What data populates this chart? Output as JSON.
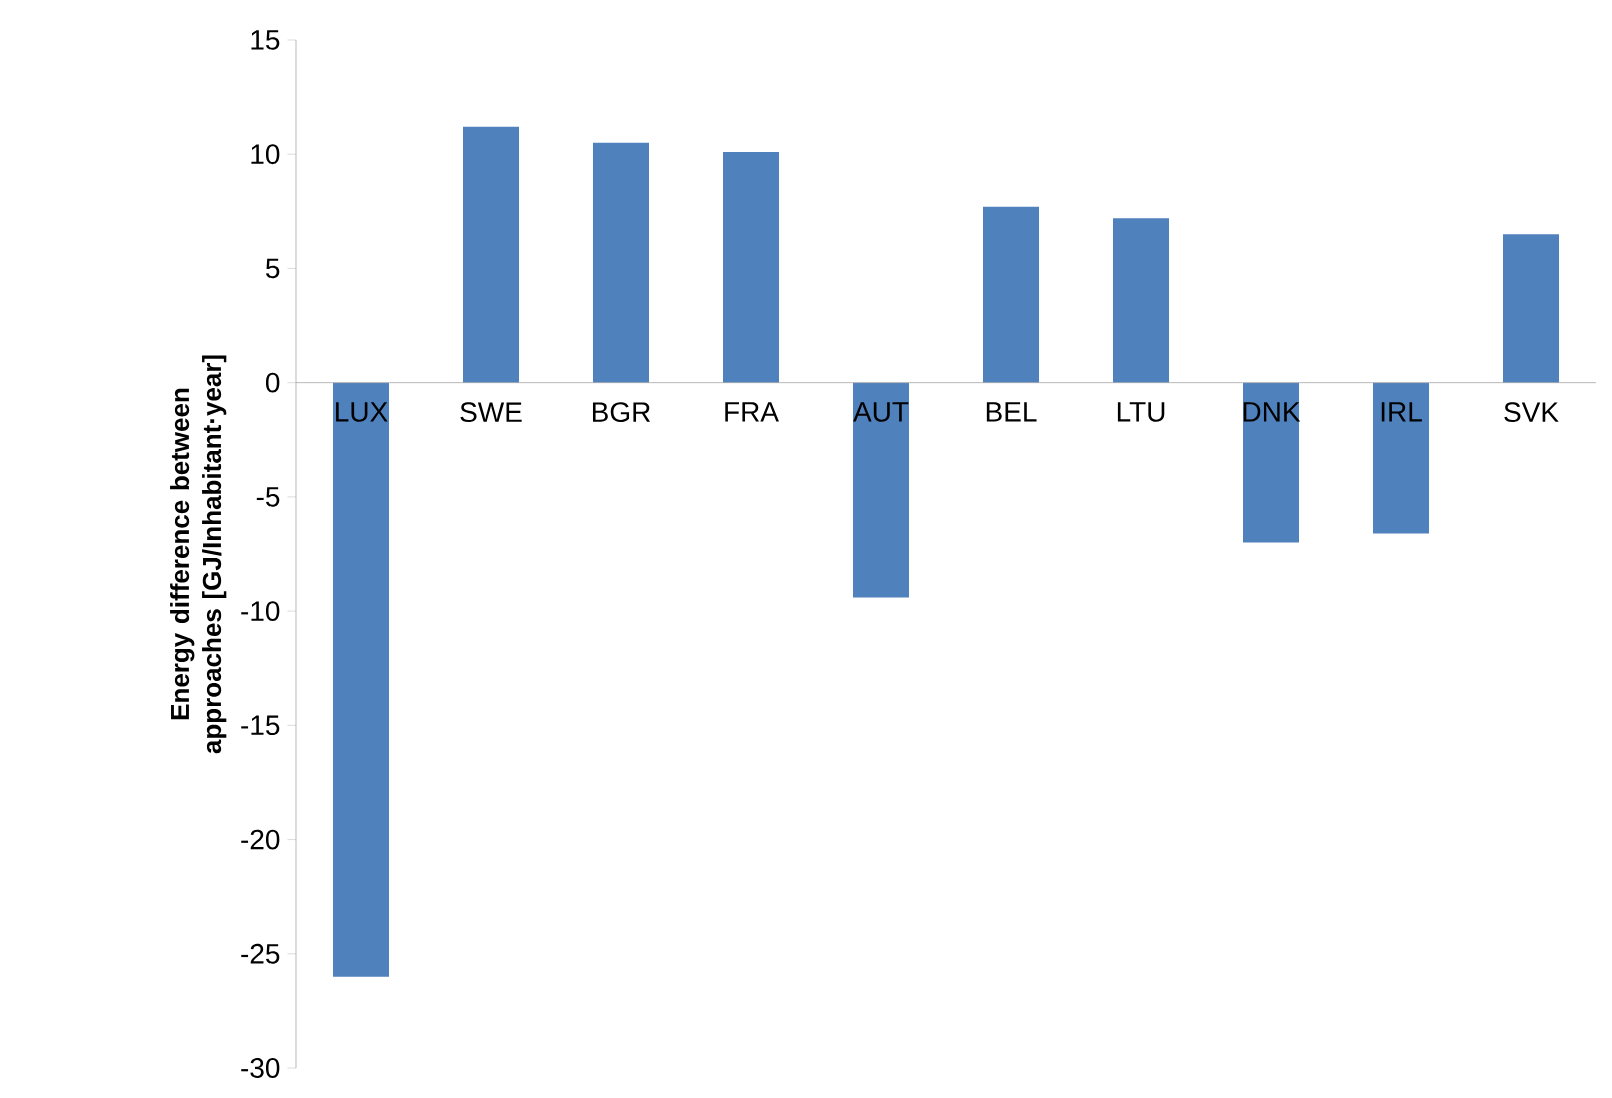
{
  "chart_data": {
    "type": "bar",
    "ylabel": "Energy difference between approaches [GJ/Inhabitant·year]",
    "categories": [
      "LUX",
      "SWE",
      "BGR",
      "FRA",
      "AUT",
      "BEL",
      "LTU",
      "DNK",
      "IRL",
      "SVK"
    ],
    "values": [
      -26.0,
      11.2,
      10.5,
      10.1,
      -9.4,
      7.7,
      7.2,
      -7.0,
      -6.6,
      6.5
    ],
    "color": "#4f81bd",
    "ylim": [
      -30,
      15
    ],
    "yticks": [
      -30,
      -25,
      -20,
      -15,
      -10,
      -5,
      0,
      5,
      10,
      15
    ]
  }
}
